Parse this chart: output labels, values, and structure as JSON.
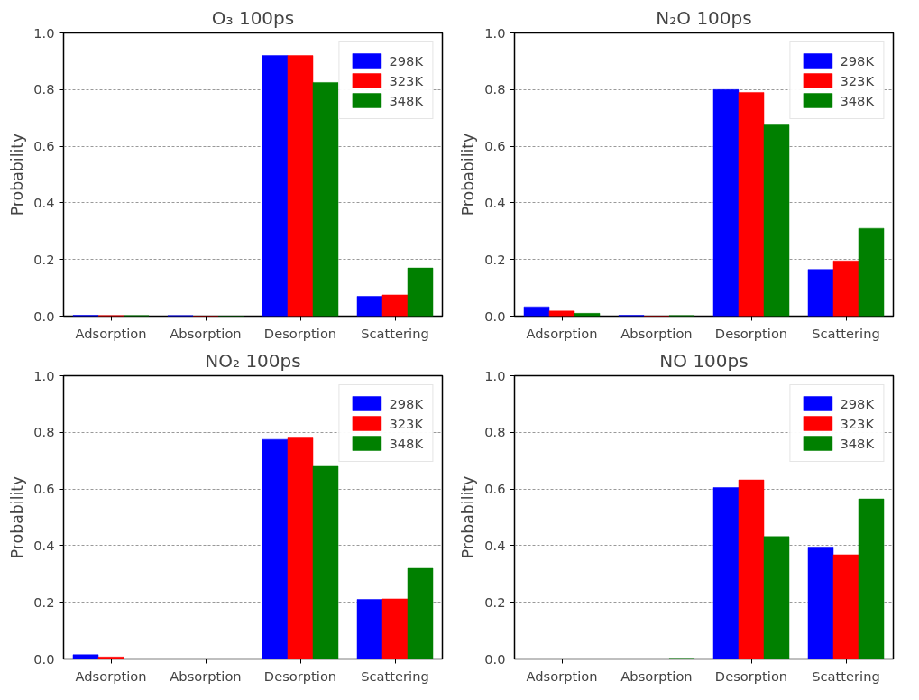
{
  "chart_data": [
    {
      "type": "bar",
      "title": "O₃ 100ps",
      "ylabel": "Probability",
      "categories": [
        "Adsorption",
        "Absorption",
        "Desorption",
        "Scattering"
      ],
      "ylim": [
        0,
        1
      ],
      "yticks": [
        {
          "value": 0,
          "label": "0.0"
        },
        {
          "value": 0.2,
          "label": "0.2"
        },
        {
          "value": 0.4,
          "label": "0.4"
        },
        {
          "value": 0.6,
          "label": "0.6"
        },
        {
          "value": 0.8,
          "label": "0.8"
        },
        {
          "value": 1,
          "label": "1.0"
        }
      ],
      "grid": "y",
      "legend": "top right",
      "series": [
        {
          "name": "298K",
          "color": "#0000ff",
          "values": [
            0.003,
            0.002,
            0.92,
            0.07
          ]
        },
        {
          "name": "323K",
          "color": "#ff0000",
          "values": [
            0.002,
            0,
            0.92,
            0.075
          ]
        },
        {
          "name": "348K",
          "color": "#008000",
          "values": [
            0.002,
            0,
            0.825,
            0.17
          ]
        }
      ]
    },
    {
      "type": "bar",
      "title": "N₂O 100ps",
      "ylabel": "Probability",
      "categories": [
        "Adsorption",
        "Absorption",
        "Desorption",
        "Scattering"
      ],
      "ylim": [
        0,
        1
      ],
      "yticks": [
        {
          "value": 0,
          "label": "0.0"
        },
        {
          "value": 0.2,
          "label": "0.2"
        },
        {
          "value": 0.4,
          "label": "0.4"
        },
        {
          "value": 0.6,
          "label": "0.6"
        },
        {
          "value": 0.8,
          "label": "0.8"
        },
        {
          "value": 1,
          "label": "1.0"
        }
      ],
      "grid": "y",
      "legend": "top right",
      "series": [
        {
          "name": "298K",
          "color": "#0000ff",
          "values": [
            0.033,
            0.003,
            0.8,
            0.165
          ]
        },
        {
          "name": "323K",
          "color": "#ff0000",
          "values": [
            0.018,
            0,
            0.79,
            0.195
          ]
        },
        {
          "name": "348K",
          "color": "#008000",
          "values": [
            0.01,
            0.002,
            0.675,
            0.31
          ]
        }
      ]
    },
    {
      "type": "bar",
      "title": "NO₂ 100ps",
      "ylabel": "Probability",
      "categories": [
        "Adsorption",
        "Absorption",
        "Desorption",
        "Scattering"
      ],
      "ylim": [
        0,
        1
      ],
      "yticks": [
        {
          "value": 0,
          "label": "0.0"
        },
        {
          "value": 0.2,
          "label": "0.2"
        },
        {
          "value": 0.4,
          "label": "0.4"
        },
        {
          "value": 0.6,
          "label": "0.6"
        },
        {
          "value": 0.8,
          "label": "0.8"
        },
        {
          "value": 1,
          "label": "1.0"
        }
      ],
      "grid": "y",
      "legend": "top right",
      "series": [
        {
          "name": "298K",
          "color": "#0000ff",
          "values": [
            0.015,
            0,
            0.775,
            0.21
          ]
        },
        {
          "name": "323K",
          "color": "#ff0000",
          "values": [
            0.007,
            0,
            0.78,
            0.212
          ]
        },
        {
          "name": "348K",
          "color": "#008000",
          "values": [
            0,
            0,
            0.68,
            0.32
          ]
        }
      ]
    },
    {
      "type": "bar",
      "title": "NO 100ps",
      "ylabel": "Probability",
      "categories": [
        "Adsorption",
        "Absorption",
        "Desorption",
        "Scattering"
      ],
      "ylim": [
        0,
        1
      ],
      "yticks": [
        {
          "value": 0,
          "label": "0.0"
        },
        {
          "value": 0.2,
          "label": "0.2"
        },
        {
          "value": 0.4,
          "label": "0.4"
        },
        {
          "value": 0.6,
          "label": "0.6"
        },
        {
          "value": 0.8,
          "label": "0.8"
        },
        {
          "value": 1,
          "label": "1.0"
        }
      ],
      "grid": "y",
      "legend": "top right",
      "series": [
        {
          "name": "298K",
          "color": "#0000ff",
          "values": [
            0,
            0,
            0.605,
            0.395
          ]
        },
        {
          "name": "323K",
          "color": "#ff0000",
          "values": [
            0,
            0,
            0.632,
            0.368
          ]
        },
        {
          "name": "348K",
          "color": "#008000",
          "values": [
            0,
            0.002,
            0.432,
            0.565
          ]
        }
      ]
    }
  ]
}
